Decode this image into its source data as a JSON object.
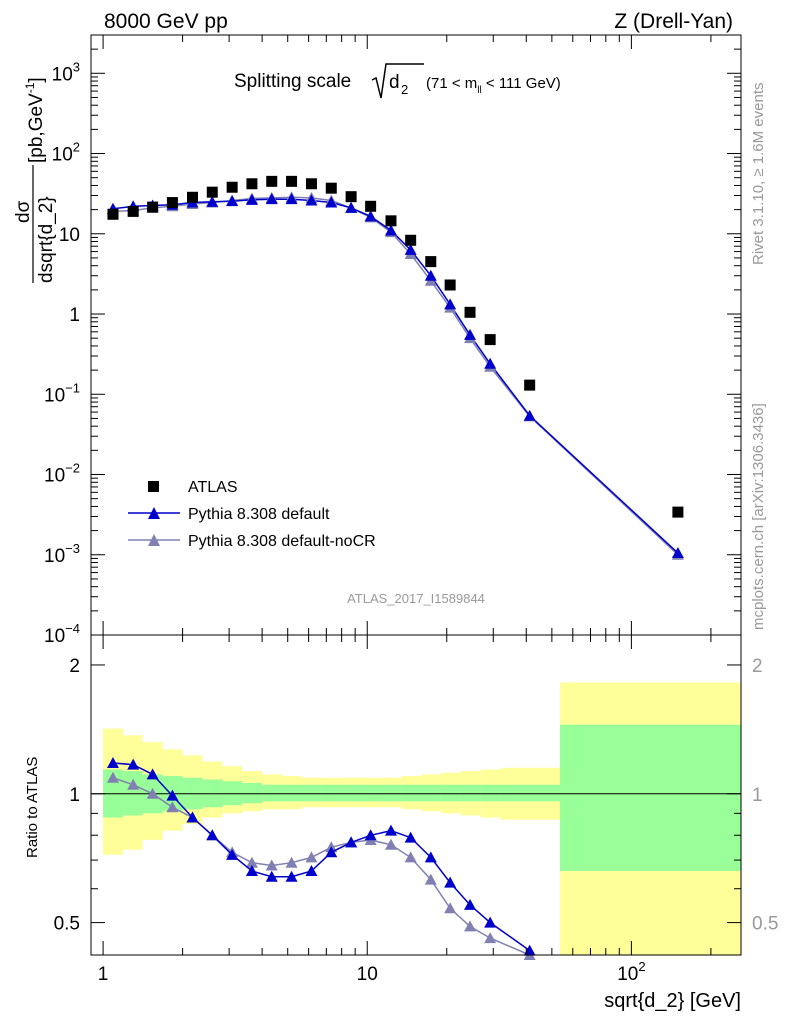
{
  "header": {
    "left": "8000 GeV pp",
    "right": "Z (Drell-Yan)"
  },
  "side_labels": {
    "rivet": "Rivet 3.1.10, ≥ 1.6M events",
    "source": "mcplots.cern.ch [arXiv:1306.3436]"
  },
  "colors": {
    "data": "#000000",
    "default": "#0000cc",
    "nocr": "#8080b3",
    "band_inner": "#99ff99",
    "band_outer": "#ffff99"
  },
  "chart_data": [
    {
      "type": "scatter",
      "panel": "main",
      "title_main": "Splitting scale",
      "title_sqrt": "d",
      "title_sqrt_sub": "2",
      "title_range": "(71 < m",
      "title_range_sub": "ll",
      "title_range_end": " < 111 GeV)",
      "watermark": "ATLAS_2017_I1589844",
      "ylabel_num": "dσ",
      "ylabel_den": "dsqrt{d_2}",
      "ylabel_units": "[pb,GeV",
      "ylabel_units_sup": "-1",
      "ylabel_units_end": "]",
      "xscale": "log",
      "yscale": "log",
      "xlim": [
        0.9,
        260
      ],
      "ylim": [
        0.0001,
        3000
      ],
      "yticks": [
        {
          "base": "10",
          "exp": "3"
        },
        {
          "base": "10",
          "exp": "2"
        },
        {
          "base": "10",
          "exp": ""
        },
        {
          "base": "1",
          "exp": ""
        },
        {
          "base": "10",
          "exp": "−1"
        },
        {
          "base": "10",
          "exp": "−2"
        },
        {
          "base": "10",
          "exp": "−3"
        },
        {
          "base": "10",
          "exp": "−4"
        }
      ],
      "ytick_values": [
        1000,
        100,
        10,
        1,
        0.1,
        0.01,
        0.001,
        0.0001
      ],
      "legend_position": "lower-left",
      "series": [
        {
          "name": "ATLAS",
          "marker": "square",
          "x": [
            1.09,
            1.3,
            1.54,
            1.83,
            2.18,
            2.59,
            3.08,
            3.66,
            4.35,
            5.17,
            6.15,
            7.31,
            8.69,
            10.3,
            12.3,
            14.6,
            17.4,
            20.6,
            24.5,
            29.2,
            41.2,
            150
          ],
          "y": [
            17.5,
            19,
            21.5,
            24.5,
            28.5,
            33,
            38,
            42,
            45,
            45,
            42,
            37,
            29,
            22,
            14.5,
            8.3,
            4.5,
            2.3,
            1.05,
            0.48,
            0.13,
            0.0034
          ]
        },
        {
          "name": "Pythia 8.308 default",
          "marker": "triangle",
          "x": [
            1.09,
            1.3,
            1.54,
            1.83,
            2.18,
            2.59,
            3.08,
            3.66,
            4.35,
            5.17,
            6.15,
            7.31,
            8.69,
            10.3,
            12.3,
            14.6,
            17.4,
            20.6,
            24.5,
            29.2,
            41.2,
            150
          ],
          "y": [
            20.5,
            22,
            22.5,
            23,
            24.5,
            25,
            25.5,
            26.5,
            27,
            27,
            26,
            24.5,
            21,
            16.5,
            11,
            6.3,
            3.0,
            1.32,
            0.55,
            0.24,
            0.054,
            0.00105
          ]
        },
        {
          "name": "Pythia 8.308 default-noCR",
          "marker": "triangle",
          "x": [
            1.09,
            1.3,
            1.54,
            1.83,
            2.18,
            2.59,
            3.08,
            3.66,
            4.35,
            5.17,
            6.15,
            7.31,
            8.69,
            10.3,
            12.3,
            14.6,
            17.4,
            20.6,
            24.5,
            29.2,
            41.2,
            150
          ],
          "y": [
            19,
            19.5,
            21,
            22,
            23.5,
            24.5,
            26,
            27.5,
            28,
            28.5,
            28,
            26,
            21,
            16,
            10.5,
            5.6,
            2.6,
            1.2,
            0.5,
            0.22,
            0.053,
            0.001
          ]
        }
      ]
    },
    {
      "type": "line",
      "panel": "ratio",
      "ylabel": "Ratio to ATLAS",
      "xlabel": "sqrt{d_2} [GeV]",
      "xscale": "log",
      "yscale": "log",
      "xlim": [
        0.9,
        260
      ],
      "ylim": [
        0.42,
        2.35
      ],
      "yticks": [
        0.5,
        1,
        2
      ],
      "ytick_labels": [
        "0.5",
        "1",
        "2"
      ],
      "xtick_labels": [
        {
          "base": "1",
          "exp": ""
        },
        {
          "base": "10",
          "exp": ""
        },
        {
          "base": "10",
          "exp": "2"
        }
      ],
      "xtick_values": [
        1,
        10,
        100
      ],
      "bands": {
        "edges": [
          1.0,
          1.19,
          1.41,
          1.68,
          2.0,
          2.38,
          2.83,
          3.36,
          4.0,
          4.76,
          5.66,
          6.73,
          8.0,
          9.51,
          11.3,
          13.5,
          16.0,
          19.0,
          22.6,
          26.9,
          32.0,
          53.7,
          260
        ],
        "inner": [
          [
            0.88,
            1.14
          ],
          [
            0.89,
            1.13
          ],
          [
            0.9,
            1.11
          ],
          [
            0.91,
            1.1
          ],
          [
            0.92,
            1.09
          ],
          [
            0.93,
            1.08
          ],
          [
            0.94,
            1.07
          ],
          [
            0.95,
            1.06
          ],
          [
            0.96,
            1.05
          ],
          [
            0.96,
            1.05
          ],
          [
            0.96,
            1.05
          ],
          [
            0.96,
            1.05
          ],
          [
            0.96,
            1.05
          ],
          [
            0.96,
            1.05
          ],
          [
            0.96,
            1.05
          ],
          [
            0.96,
            1.05
          ],
          [
            0.96,
            1.05
          ],
          [
            0.96,
            1.05
          ],
          [
            0.96,
            1.05
          ],
          [
            0.96,
            1.05
          ],
          [
            0.96,
            1.05
          ],
          [
            0.66,
            1.45
          ]
        ],
        "outer": [
          [
            0.72,
            1.42
          ],
          [
            0.74,
            1.37
          ],
          [
            0.78,
            1.32
          ],
          [
            0.82,
            1.27
          ],
          [
            0.85,
            1.23
          ],
          [
            0.88,
            1.19
          ],
          [
            0.9,
            1.16
          ],
          [
            0.91,
            1.13
          ],
          [
            0.92,
            1.11
          ],
          [
            0.92,
            1.1
          ],
          [
            0.93,
            1.09
          ],
          [
            0.93,
            1.09
          ],
          [
            0.93,
            1.09
          ],
          [
            0.93,
            1.09
          ],
          [
            0.93,
            1.09
          ],
          [
            0.92,
            1.1
          ],
          [
            0.91,
            1.11
          ],
          [
            0.9,
            1.12
          ],
          [
            0.89,
            1.13
          ],
          [
            0.88,
            1.14
          ],
          [
            0.87,
            1.15
          ],
          [
            0.38,
            1.82
          ]
        ]
      },
      "series": [
        {
          "name": "Pythia 8.308 default",
          "x": [
            1.09,
            1.3,
            1.54,
            1.83,
            2.18,
            2.59,
            3.08,
            3.66,
            4.35,
            5.17,
            6.15,
            7.31,
            8.69,
            10.3,
            12.3,
            14.6,
            17.4,
            20.6,
            24.5,
            29.2,
            41.2
          ],
          "y": [
            1.18,
            1.17,
            1.11,
            0.99,
            0.88,
            0.8,
            0.72,
            0.66,
            0.64,
            0.64,
            0.66,
            0.73,
            0.77,
            0.8,
            0.82,
            0.79,
            0.71,
            0.62,
            0.55,
            0.5,
            0.43
          ]
        },
        {
          "name": "Pythia 8.308 default-noCR",
          "x": [
            1.09,
            1.3,
            1.54,
            1.83,
            2.18,
            2.59,
            3.08,
            3.66,
            4.35,
            5.17,
            6.15,
            7.31,
            8.69,
            10.3,
            12.3,
            14.6,
            17.4,
            20.6,
            24.5,
            29.2,
            41.2
          ],
          "y": [
            1.09,
            1.05,
            1.0,
            0.93,
            0.88,
            0.8,
            0.73,
            0.69,
            0.68,
            0.69,
            0.71,
            0.75,
            0.77,
            0.78,
            0.76,
            0.71,
            0.63,
            0.54,
            0.49,
            0.46,
            0.42
          ]
        }
      ]
    }
  ]
}
